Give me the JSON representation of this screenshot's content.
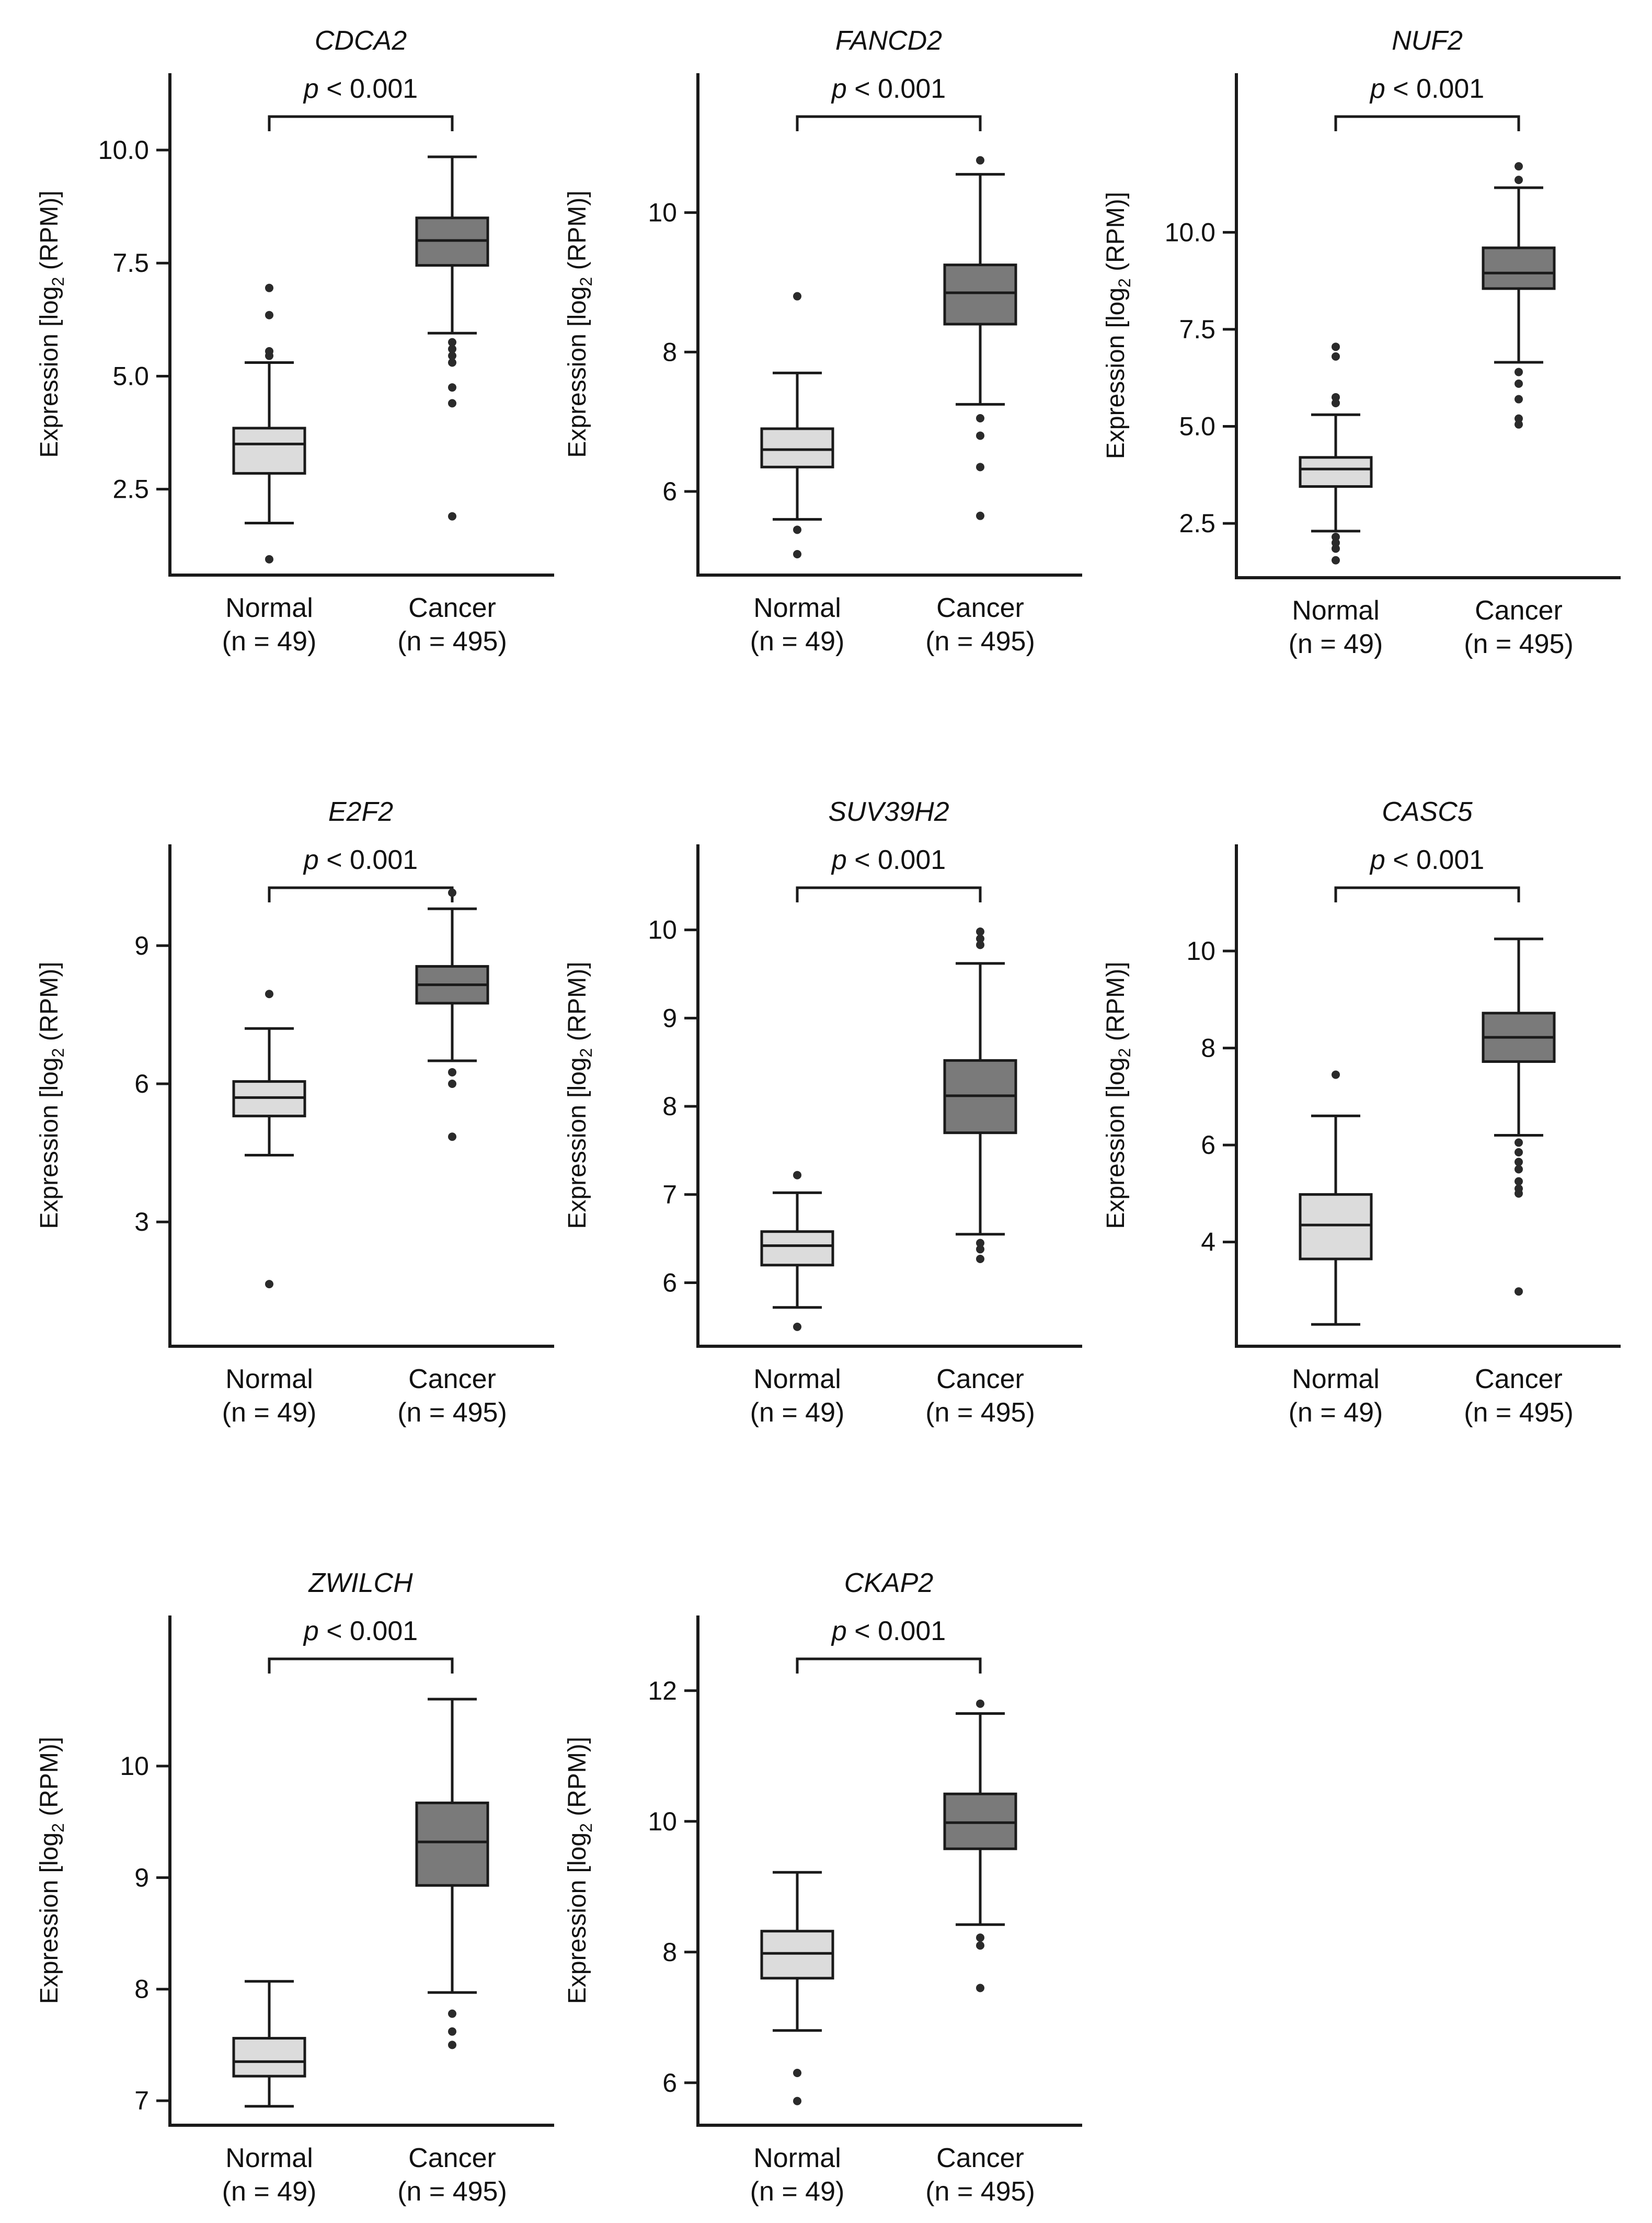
{
  "colors": {
    "normal_fill": "#dcdcdc",
    "cancer_fill": "#7a7a7a",
    "line": "#1a1a1a",
    "outlier": "#2a2a2a"
  },
  "labels": {
    "ylabel_main": "Expression [log",
    "ylabel_sub": "2",
    "ylabel_tail": " (RPM)]",
    "p_prefix": "p",
    "p_suffix": " < 0.001"
  },
  "chart_data": [
    {
      "type": "box",
      "title": "CDCA2",
      "p_value": "p < 0.001",
      "ylabel": "Expression [log2 (RPM)]",
      "categories": [
        "Normal",
        "Cancer"
      ],
      "category_sub": [
        "(n = 49)",
        "(n = 495)"
      ],
      "yticks": [
        2.5,
        5.0,
        7.5,
        10.0
      ],
      "ytick_labels": [
        "2.5",
        "5.0",
        "7.5",
        "10.0"
      ],
      "ylim": [
        0.6,
        11.7
      ],
      "boxes": [
        {
          "group": "Normal",
          "q1": 2.85,
          "median": 3.5,
          "q3": 3.85,
          "whisker_low": 1.75,
          "whisker_high": 5.3,
          "outliers": [
            0.95,
            5.45,
            5.55,
            6.35,
            6.95
          ]
        },
        {
          "group": "Cancer",
          "q1": 7.45,
          "median": 8.0,
          "q3": 8.5,
          "whisker_low": 5.95,
          "whisker_high": 9.85,
          "outliers": [
            5.75,
            5.6,
            5.45,
            5.3,
            4.75,
            4.4,
            1.9
          ]
        }
      ]
    },
    {
      "type": "box",
      "title": "FANCD2",
      "p_value": "p < 0.001",
      "ylabel": "Expression [log2 (RPM)]",
      "categories": [
        "Normal",
        "Cancer"
      ],
      "category_sub": [
        "(n = 49)",
        "(n = 495)"
      ],
      "yticks": [
        6,
        8,
        10
      ],
      "ytick_labels": [
        "6",
        "8",
        "10"
      ],
      "ylim": [
        4.8,
        12.0
      ],
      "boxes": [
        {
          "group": "Normal",
          "q1": 6.35,
          "median": 6.6,
          "q3": 6.9,
          "whisker_low": 5.6,
          "whisker_high": 7.7,
          "outliers": [
            5.45,
            5.1,
            8.8
          ]
        },
        {
          "group": "Cancer",
          "q1": 8.4,
          "median": 8.85,
          "q3": 9.25,
          "whisker_low": 7.25,
          "whisker_high": 10.55,
          "outliers": [
            7.05,
            6.8,
            6.35,
            5.65,
            10.75
          ]
        }
      ]
    },
    {
      "type": "box",
      "title": "NUF2",
      "p_value": "p < 0.001",
      "ylabel": "Expression [log2 (RPM)]",
      "categories": [
        "Normal",
        "Cancer"
      ],
      "category_sub": [
        "(n = 49)",
        "(n = 495)"
      ],
      "yticks": [
        2.5,
        5.0,
        7.5,
        10.0
      ],
      "ytick_labels": [
        "2.5",
        "5.0",
        "7.5",
        "10.0"
      ],
      "ylim": [
        1.1,
        14.1
      ],
      "boxes": [
        {
          "group": "Normal",
          "q1": 3.45,
          "median": 3.9,
          "q3": 4.2,
          "whisker_low": 2.3,
          "whisker_high": 5.3,
          "outliers": [
            2.15,
            2.0,
            1.85,
            1.55,
            5.6,
            5.75,
            6.8,
            7.05
          ]
        },
        {
          "group": "Cancer",
          "q1": 8.55,
          "median": 8.95,
          "q3": 9.6,
          "whisker_low": 6.65,
          "whisker_high": 11.15,
          "outliers": [
            6.4,
            6.1,
            5.7,
            5.2,
            5.05,
            11.35,
            11.7
          ]
        }
      ]
    },
    {
      "type": "box",
      "title": "E2F2",
      "p_value": "p < 0.001",
      "ylabel": "Expression [log2 (RPM)]",
      "categories": [
        "Normal",
        "Cancer"
      ],
      "category_sub": [
        "(n = 49)",
        "(n = 495)"
      ],
      "yticks": [
        3,
        6,
        9
      ],
      "ytick_labels": [
        "3",
        "6",
        "9"
      ],
      "ylim": [
        0.3,
        11.2
      ],
      "boxes": [
        {
          "group": "Normal",
          "q1": 5.3,
          "median": 5.7,
          "q3": 6.05,
          "whisker_low": 4.45,
          "whisker_high": 7.2,
          "outliers": [
            1.65,
            7.95
          ]
        },
        {
          "group": "Cancer",
          "q1": 7.75,
          "median": 8.15,
          "q3": 8.55,
          "whisker_low": 6.5,
          "whisker_high": 9.8,
          "outliers": [
            6.25,
            6.0,
            4.85,
            10.15
          ]
        }
      ]
    },
    {
      "type": "box",
      "title": "SUV39H2",
      "p_value": "p < 0.001",
      "ylabel": "Expression [log2 (RPM)]",
      "categories": [
        "Normal",
        "Cancer"
      ],
      "category_sub": [
        "(n = 49)",
        "(n = 495)"
      ],
      "yticks": [
        6,
        7,
        8,
        9,
        10
      ],
      "ytick_labels": [
        "6",
        "7",
        "8",
        "9",
        "10"
      ],
      "ylim": [
        5.28,
        10.97
      ],
      "boxes": [
        {
          "group": "Normal",
          "q1": 6.2,
          "median": 6.42,
          "q3": 6.58,
          "whisker_low": 5.72,
          "whisker_high": 7.02,
          "outliers": [
            5.5,
            7.22
          ]
        },
        {
          "group": "Cancer",
          "q1": 7.7,
          "median": 8.12,
          "q3": 8.52,
          "whisker_low": 6.55,
          "whisker_high": 9.62,
          "outliers": [
            6.45,
            6.38,
            6.27,
            9.83,
            9.9,
            9.98
          ]
        }
      ]
    },
    {
      "type": "box",
      "title": "CASC5",
      "p_value": "p < 0.001",
      "ylabel": "Expression [log2 (RPM)]",
      "categories": [
        "Normal",
        "Cancer"
      ],
      "category_sub": [
        "(n = 49)",
        "(n = 495)"
      ],
      "yticks": [
        4,
        6,
        8,
        10
      ],
      "ytick_labels": [
        "4",
        "6",
        "8",
        "10"
      ],
      "ylim": [
        1.85,
        12.2
      ],
      "boxes": [
        {
          "group": "Normal",
          "q1": 3.65,
          "median": 4.35,
          "q3": 4.98,
          "whisker_low": 2.3,
          "whisker_high": 6.6,
          "outliers": [
            7.45
          ]
        },
        {
          "group": "Cancer",
          "q1": 7.72,
          "median": 8.22,
          "q3": 8.72,
          "whisker_low": 6.2,
          "whisker_high": 10.25,
          "outliers": [
            6.05,
            5.85,
            5.65,
            5.5,
            5.25,
            5.1,
            5.0,
            2.98
          ]
        }
      ]
    },
    {
      "type": "box",
      "title": "ZWILCH",
      "p_value": "p < 0.001",
      "ylabel": "Expression [log2 (RPM)]",
      "categories": [
        "Normal",
        "Cancer"
      ],
      "category_sub": [
        "(n = 49)",
        "(n = 495)"
      ],
      "yticks": [
        7,
        8,
        9,
        10
      ],
      "ytick_labels": [
        "7",
        "8",
        "9",
        "10"
      ],
      "ylim": [
        6.78,
        11.35
      ],
      "boxes": [
        {
          "group": "Normal",
          "q1": 7.22,
          "median": 7.35,
          "q3": 7.56,
          "whisker_low": 6.95,
          "whisker_high": 8.07,
          "outliers": []
        },
        {
          "group": "Cancer",
          "q1": 8.93,
          "median": 9.32,
          "q3": 9.67,
          "whisker_low": 7.97,
          "whisker_high": 10.6,
          "outliers": [
            7.78,
            7.62,
            7.5
          ]
        }
      ]
    },
    {
      "type": "box",
      "title": "CKAP2",
      "p_value": "p < 0.001",
      "ylabel": "Expression [log2 (RPM)]",
      "categories": [
        "Normal",
        "Cancer"
      ],
      "category_sub": [
        "(n = 49)",
        "(n = 495)"
      ],
      "yticks": [
        6,
        8,
        10,
        12
      ],
      "ytick_labels": [
        "6",
        "8",
        "10",
        "12"
      ],
      "ylim": [
        5.35,
        13.15
      ],
      "boxes": [
        {
          "group": "Normal",
          "q1": 7.6,
          "median": 7.98,
          "q3": 8.32,
          "whisker_low": 6.8,
          "whisker_high": 9.22,
          "outliers": [
            6.15,
            5.72
          ]
        },
        {
          "group": "Cancer",
          "q1": 9.58,
          "median": 9.98,
          "q3": 10.42,
          "whisker_low": 8.42,
          "whisker_high": 11.65,
          "outliers": [
            8.22,
            8.1,
            7.45,
            11.8
          ]
        }
      ]
    }
  ]
}
